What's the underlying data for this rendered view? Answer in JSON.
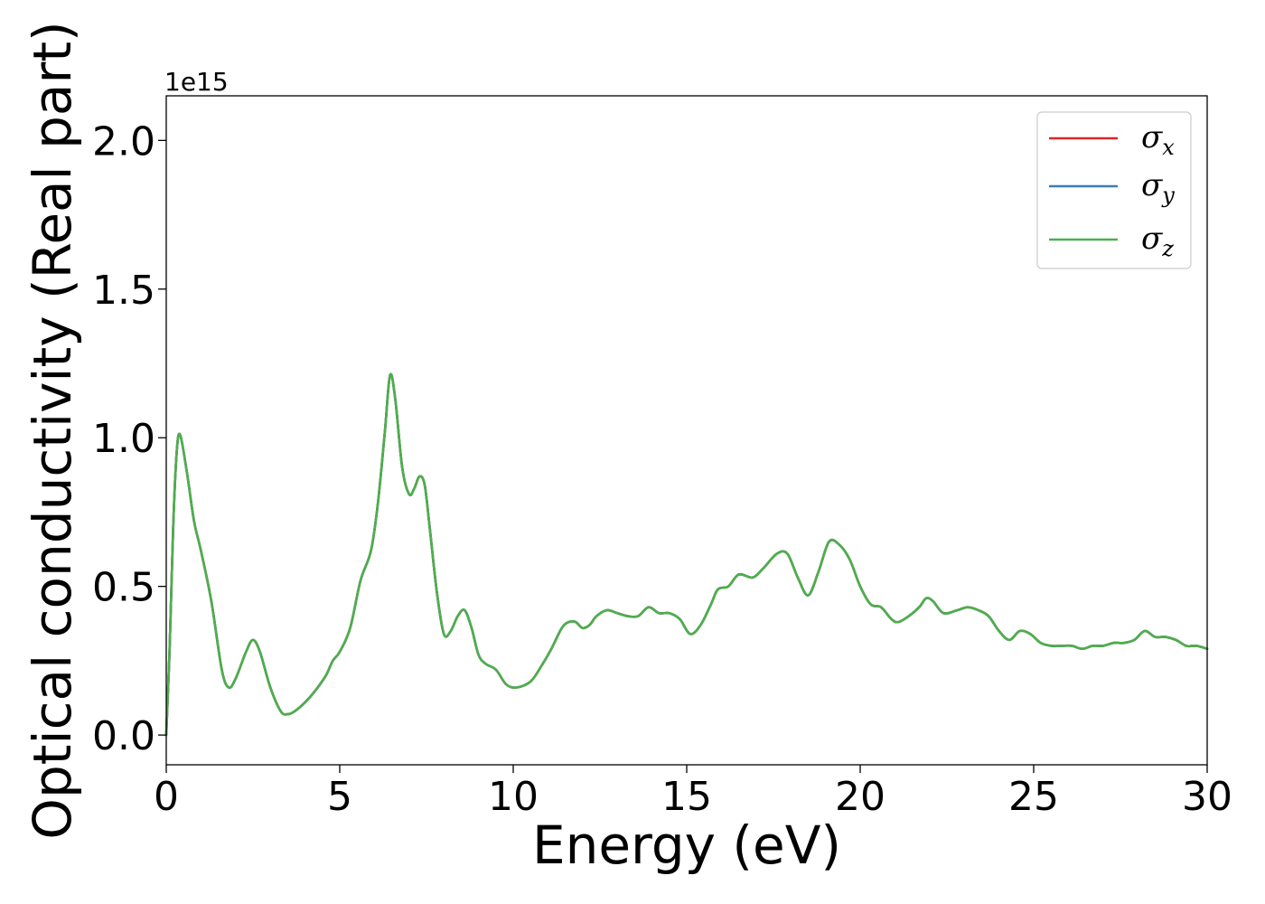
{
  "chart_data": {
    "type": "line",
    "title": "",
    "xlabel": "Energy (eV)",
    "ylabel": "Optical conductivity (Real part)",
    "y_offset_label": "1e15",
    "xlim": [
      0,
      30
    ],
    "ylim": [
      -0.1,
      2.15
    ],
    "x_ticks": [
      0,
      5,
      10,
      15,
      20,
      25,
      30
    ],
    "x_tick_labels": [
      "0",
      "5",
      "10",
      "15",
      "20",
      "25",
      "30"
    ],
    "y_ticks": [
      0.0,
      0.5,
      1.0,
      1.5,
      2.0
    ],
    "y_tick_labels": [
      "0.0",
      "0.5",
      "1.0",
      "1.5",
      "2.0"
    ],
    "grid": false,
    "legend_position": "top-right",
    "x": [
      0,
      0.1,
      0.2,
      0.3,
      0.4,
      0.6,
      0.8,
      1.0,
      1.3,
      1.6,
      1.8,
      2.0,
      2.3,
      2.5,
      2.7,
      3.0,
      3.3,
      3.5,
      3.7,
      4.0,
      4.3,
      4.6,
      4.8,
      5.0,
      5.3,
      5.6,
      5.9,
      6.1,
      6.3,
      6.45,
      6.6,
      6.8,
      7.0,
      7.15,
      7.3,
      7.45,
      7.6,
      7.8,
      8.0,
      8.2,
      8.4,
      8.6,
      8.8,
      9.0,
      9.2,
      9.5,
      9.8,
      10.1,
      10.5,
      10.8,
      11.1,
      11.4,
      11.6,
      11.8,
      12.0,
      12.2,
      12.4,
      12.7,
      13.0,
      13.3,
      13.6,
      13.9,
      14.2,
      14.5,
      14.8,
      15.1,
      15.4,
      15.7,
      15.9,
      16.2,
      16.5,
      16.9,
      17.2,
      17.6,
      17.9,
      18.2,
      18.5,
      18.8,
      19.1,
      19.4,
      19.7,
      20.0,
      20.3,
      20.6,
      20.9,
      21.1,
      21.4,
      21.7,
      21.9,
      22.1,
      22.4,
      22.8,
      23.1,
      23.4,
      23.7,
      24.0,
      24.3,
      24.6,
      24.9,
      25.2,
      25.5,
      25.8,
      26.1,
      26.4,
      26.7,
      27.0,
      27.3,
      27.6,
      27.9,
      28.2,
      28.5,
      28.8,
      29.1,
      29.4,
      29.7,
      30.0
    ],
    "series": [
      {
        "name": "σ_x",
        "symbol": "σ",
        "subscript": "x",
        "color": "#d62728",
        "values": [
          0.0,
          0.3,
          0.7,
          0.95,
          1.01,
          0.88,
          0.72,
          0.62,
          0.45,
          0.22,
          0.16,
          0.19,
          0.28,
          0.32,
          0.28,
          0.16,
          0.08,
          0.07,
          0.08,
          0.11,
          0.15,
          0.2,
          0.25,
          0.28,
          0.36,
          0.52,
          0.62,
          0.78,
          1.02,
          1.21,
          1.13,
          0.9,
          0.81,
          0.83,
          0.87,
          0.84,
          0.69,
          0.48,
          0.34,
          0.35,
          0.4,
          0.42,
          0.36,
          0.27,
          0.24,
          0.22,
          0.17,
          0.16,
          0.18,
          0.23,
          0.29,
          0.36,
          0.38,
          0.38,
          0.36,
          0.37,
          0.4,
          0.42,
          0.41,
          0.4,
          0.4,
          0.43,
          0.41,
          0.41,
          0.39,
          0.34,
          0.37,
          0.44,
          0.49,
          0.5,
          0.54,
          0.53,
          0.56,
          0.61,
          0.61,
          0.53,
          0.47,
          0.55,
          0.65,
          0.64,
          0.59,
          0.5,
          0.44,
          0.43,
          0.39,
          0.38,
          0.4,
          0.43,
          0.46,
          0.45,
          0.41,
          0.42,
          0.43,
          0.42,
          0.4,
          0.35,
          0.32,
          0.35,
          0.34,
          0.31,
          0.3,
          0.3,
          0.3,
          0.29,
          0.3,
          0.3,
          0.31,
          0.31,
          0.32,
          0.35,
          0.33,
          0.33,
          0.32,
          0.3,
          0.3,
          0.29
        ]
      },
      {
        "name": "σ_y",
        "symbol": "σ",
        "subscript": "y",
        "color": "#377eb8",
        "values": [
          0.0,
          0.3,
          0.7,
          0.95,
          1.01,
          0.88,
          0.72,
          0.62,
          0.45,
          0.22,
          0.16,
          0.19,
          0.28,
          0.32,
          0.28,
          0.16,
          0.08,
          0.07,
          0.08,
          0.11,
          0.15,
          0.2,
          0.25,
          0.28,
          0.36,
          0.52,
          0.62,
          0.78,
          1.02,
          1.21,
          1.13,
          0.9,
          0.81,
          0.83,
          0.87,
          0.84,
          0.69,
          0.48,
          0.34,
          0.35,
          0.4,
          0.42,
          0.36,
          0.27,
          0.24,
          0.22,
          0.17,
          0.16,
          0.18,
          0.23,
          0.29,
          0.36,
          0.38,
          0.38,
          0.36,
          0.37,
          0.4,
          0.42,
          0.41,
          0.4,
          0.4,
          0.43,
          0.41,
          0.41,
          0.39,
          0.34,
          0.37,
          0.44,
          0.49,
          0.5,
          0.54,
          0.53,
          0.56,
          0.61,
          0.61,
          0.53,
          0.47,
          0.55,
          0.65,
          0.64,
          0.59,
          0.5,
          0.44,
          0.43,
          0.39,
          0.38,
          0.4,
          0.43,
          0.46,
          0.45,
          0.41,
          0.42,
          0.43,
          0.42,
          0.4,
          0.35,
          0.32,
          0.35,
          0.34,
          0.31,
          0.3,
          0.3,
          0.3,
          0.29,
          0.3,
          0.3,
          0.31,
          0.31,
          0.32,
          0.35,
          0.33,
          0.33,
          0.32,
          0.3,
          0.3,
          0.29
        ]
      },
      {
        "name": "σ_z",
        "symbol": "σ",
        "subscript": "z",
        "color": "#4daf4a",
        "values": [
          0.0,
          0.3,
          0.7,
          0.95,
          1.01,
          0.88,
          0.72,
          0.62,
          0.45,
          0.22,
          0.16,
          0.19,
          0.28,
          0.32,
          0.28,
          0.16,
          0.08,
          0.07,
          0.08,
          0.11,
          0.15,
          0.2,
          0.25,
          0.28,
          0.36,
          0.52,
          0.62,
          0.78,
          1.02,
          1.21,
          1.13,
          0.9,
          0.81,
          0.83,
          0.87,
          0.84,
          0.69,
          0.48,
          0.34,
          0.35,
          0.4,
          0.42,
          0.36,
          0.27,
          0.24,
          0.22,
          0.17,
          0.16,
          0.18,
          0.23,
          0.29,
          0.36,
          0.38,
          0.38,
          0.36,
          0.37,
          0.4,
          0.42,
          0.41,
          0.4,
          0.4,
          0.43,
          0.41,
          0.41,
          0.39,
          0.34,
          0.37,
          0.44,
          0.49,
          0.5,
          0.54,
          0.53,
          0.56,
          0.61,
          0.61,
          0.53,
          0.47,
          0.55,
          0.65,
          0.64,
          0.59,
          0.5,
          0.44,
          0.43,
          0.39,
          0.38,
          0.4,
          0.43,
          0.46,
          0.45,
          0.41,
          0.42,
          0.43,
          0.42,
          0.4,
          0.35,
          0.32,
          0.35,
          0.34,
          0.31,
          0.3,
          0.3,
          0.3,
          0.29,
          0.3,
          0.3,
          0.31,
          0.31,
          0.32,
          0.35,
          0.33,
          0.33,
          0.32,
          0.3,
          0.3,
          0.29
        ]
      }
    ]
  }
}
